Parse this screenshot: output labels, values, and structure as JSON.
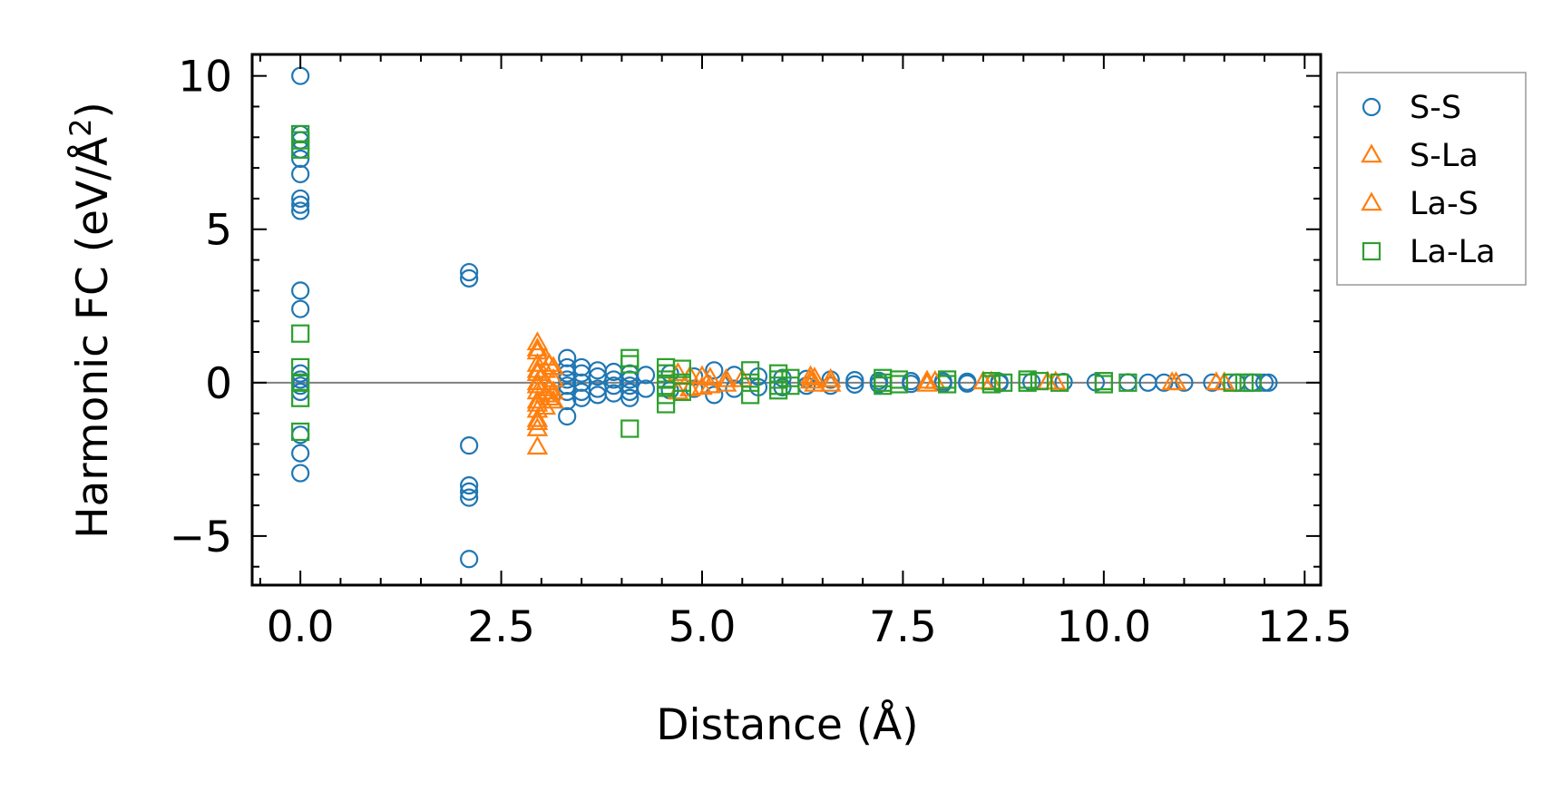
{
  "chart_data": {
    "type": "scatter",
    "title": "",
    "xlabel": "Distance (Å)",
    "ylabel_main": "Harmonic FC (eV/Å",
    "ylabel_sup": "2",
    "ylabel_close": ")",
    "xlim": [
      -0.6,
      12.7
    ],
    "ylim": [
      -6.6,
      10.7
    ],
    "xticks": [
      0.0,
      2.5,
      5.0,
      7.5,
      10.0,
      12.5
    ],
    "xtick_labels": [
      "0.0",
      "2.5",
      "5.0",
      "7.5",
      "10.0",
      "12.5"
    ],
    "yticks": [
      -5,
      0,
      5,
      10
    ],
    "ytick_labels": [
      "−5",
      "0",
      "5",
      "10"
    ],
    "zero_line": true,
    "grid": false,
    "legend_position": "outside-right-top",
    "series": [
      {
        "name": "S-S",
        "marker": "circle",
        "color": "#1f77b4",
        "points": [
          [
            0.0,
            10.0
          ],
          [
            0.0,
            8.1
          ],
          [
            0.0,
            7.9
          ],
          [
            0.0,
            7.6
          ],
          [
            0.0,
            7.3
          ],
          [
            0.0,
            6.8
          ],
          [
            0.0,
            6.0
          ],
          [
            0.0,
            5.8
          ],
          [
            0.0,
            5.6
          ],
          [
            0.0,
            3.0
          ],
          [
            0.0,
            2.4
          ],
          [
            0.0,
            0.3
          ],
          [
            0.0,
            0.1
          ],
          [
            0.0,
            -0.1
          ],
          [
            0.0,
            -0.3
          ],
          [
            0.0,
            -1.7
          ],
          [
            0.0,
            -2.3
          ],
          [
            0.0,
            -2.95
          ],
          [
            2.1,
            3.6
          ],
          [
            2.1,
            3.4
          ],
          [
            2.1,
            -2.05
          ],
          [
            2.1,
            -3.35
          ],
          [
            2.1,
            -3.55
          ],
          [
            2.1,
            -3.75
          ],
          [
            2.1,
            -5.75
          ],
          [
            3.32,
            0.8
          ],
          [
            3.32,
            0.5
          ],
          [
            3.32,
            0.3
          ],
          [
            3.32,
            0.1
          ],
          [
            3.32,
            -0.1
          ],
          [
            3.32,
            -0.3
          ],
          [
            3.32,
            -0.6
          ],
          [
            3.32,
            -1.1
          ],
          [
            3.5,
            0.5
          ],
          [
            3.5,
            0.3
          ],
          [
            3.5,
            0.0
          ],
          [
            3.5,
            -0.3
          ],
          [
            3.5,
            -0.5
          ],
          [
            3.7,
            0.4
          ],
          [
            3.7,
            0.2
          ],
          [
            3.7,
            -0.2
          ],
          [
            3.7,
            -0.4
          ],
          [
            3.9,
            0.35
          ],
          [
            3.9,
            0.1
          ],
          [
            3.9,
            -0.1
          ],
          [
            3.9,
            -0.35
          ],
          [
            4.1,
            0.3
          ],
          [
            4.1,
            0.1
          ],
          [
            4.1,
            -0.1
          ],
          [
            4.1,
            -0.3
          ],
          [
            4.1,
            -0.5
          ],
          [
            4.3,
            0.25
          ],
          [
            4.3,
            -0.2
          ],
          [
            4.6,
            0.3
          ],
          [
            4.6,
            -0.25
          ],
          [
            4.9,
            0.2
          ],
          [
            4.9,
            -0.2
          ],
          [
            5.15,
            0.4
          ],
          [
            5.15,
            -0.4
          ],
          [
            5.4,
            0.25
          ],
          [
            5.4,
            -0.2
          ],
          [
            5.7,
            0.2
          ],
          [
            5.7,
            -0.15
          ],
          [
            6.0,
            0.15
          ],
          [
            6.0,
            -0.15
          ],
          [
            6.3,
            0.12
          ],
          [
            6.3,
            -0.1
          ],
          [
            6.6,
            0.1
          ],
          [
            6.6,
            -0.1
          ],
          [
            6.9,
            0.08
          ],
          [
            6.9,
            -0.06
          ],
          [
            7.2,
            0.06
          ],
          [
            7.2,
            -0.05
          ],
          [
            7.6,
            0.05
          ],
          [
            7.6,
            -0.04
          ],
          [
            8.0,
            0.04
          ],
          [
            8.0,
            -0.03
          ],
          [
            8.3,
            0.03
          ],
          [
            8.3,
            -0.03
          ],
          [
            8.7,
            0.03
          ],
          [
            8.7,
            -0.02
          ],
          [
            9.1,
            0.02
          ],
          [
            9.5,
            0.02
          ],
          [
            9.9,
            0.01
          ],
          [
            10.3,
            0.01
          ],
          [
            10.55,
            0.0
          ],
          [
            10.75,
            0.0
          ],
          [
            11.0,
            0.0
          ],
          [
            11.35,
            0.0
          ],
          [
            11.65,
            0.0
          ],
          [
            11.85,
            0.0
          ],
          [
            12.0,
            0.0
          ],
          [
            12.05,
            0.0
          ]
        ]
      },
      {
        "name": "S-La",
        "marker": "triangle",
        "color": "#ff7f0e",
        "points": [
          [
            2.95,
            1.3
          ],
          [
            2.95,
            1.0
          ],
          [
            2.95,
            0.6
          ],
          [
            2.95,
            0.3
          ],
          [
            2.95,
            0.0
          ],
          [
            2.95,
            -0.3
          ],
          [
            2.95,
            -0.6
          ],
          [
            2.95,
            -0.9
          ],
          [
            2.95,
            -1.2
          ],
          [
            2.95,
            -1.5
          ],
          [
            2.95,
            -2.1
          ],
          [
            3.05,
            0.8
          ],
          [
            3.05,
            0.4
          ],
          [
            3.05,
            0.0
          ],
          [
            3.05,
            -0.4
          ],
          [
            3.05,
            -0.8
          ],
          [
            3.15,
            0.5
          ],
          [
            3.15,
            0.1
          ],
          [
            3.15,
            -0.3
          ],
          [
            3.15,
            -0.6
          ],
          [
            4.85,
            0.2
          ],
          [
            4.85,
            -0.2
          ],
          [
            5.1,
            0.15
          ],
          [
            5.1,
            -0.1
          ],
          [
            5.3,
            0.1
          ],
          [
            5.3,
            -0.05
          ],
          [
            6.35,
            0.2
          ],
          [
            6.35,
            0.05
          ],
          [
            6.6,
            0.1
          ],
          [
            6.6,
            -0.05
          ],
          [
            7.8,
            0.05
          ],
          [
            7.8,
            -0.05
          ],
          [
            8.5,
            0.03
          ],
          [
            9.3,
            0.02
          ],
          [
            10.85,
            0.0
          ],
          [
            11.4,
            0.0
          ]
        ]
      },
      {
        "name": "La-S",
        "marker": "triangle",
        "color": "#ff7f0e",
        "points": [
          [
            2.95,
            1.1
          ],
          [
            2.95,
            0.4
          ],
          [
            2.95,
            -0.1
          ],
          [
            2.95,
            -0.7
          ],
          [
            2.95,
            -1.3
          ],
          [
            3.1,
            0.6
          ],
          [
            3.1,
            -0.2
          ],
          [
            3.1,
            -0.5
          ],
          [
            4.7,
            0.3
          ],
          [
            4.7,
            -0.3
          ],
          [
            5.0,
            0.2
          ],
          [
            5.0,
            -0.15
          ],
          [
            5.5,
            0.1
          ],
          [
            6.4,
            0.15
          ],
          [
            6.4,
            -0.05
          ],
          [
            7.9,
            0.04
          ],
          [
            8.6,
            0.02
          ],
          [
            9.4,
            0.02
          ],
          [
            10.9,
            0.0
          ],
          [
            11.5,
            0.0
          ]
        ]
      },
      {
        "name": "La-La",
        "marker": "square",
        "color": "#2ca02c",
        "points": [
          [
            0.0,
            8.1
          ],
          [
            0.0,
            7.9
          ],
          [
            0.0,
            7.6
          ],
          [
            0.0,
            1.6
          ],
          [
            0.0,
            0.5
          ],
          [
            0.0,
            0.0
          ],
          [
            0.0,
            -0.5
          ],
          [
            0.0,
            -1.6
          ],
          [
            4.1,
            0.8
          ],
          [
            4.1,
            0.6
          ],
          [
            4.1,
            -1.5
          ],
          [
            4.55,
            0.5
          ],
          [
            4.55,
            0.3
          ],
          [
            4.55,
            0.1
          ],
          [
            4.55,
            -0.1
          ],
          [
            4.55,
            -0.4
          ],
          [
            4.55,
            -0.7
          ],
          [
            4.75,
            0.45
          ],
          [
            4.75,
            0.0
          ],
          [
            4.75,
            -0.3
          ],
          [
            5.6,
            0.4
          ],
          [
            5.6,
            0.0
          ],
          [
            5.6,
            -0.4
          ],
          [
            5.95,
            0.3
          ],
          [
            5.95,
            0.1
          ],
          [
            5.95,
            -0.1
          ],
          [
            5.95,
            -0.25
          ],
          [
            6.1,
            0.15
          ],
          [
            6.1,
            -0.1
          ],
          [
            7.25,
            0.15
          ],
          [
            7.25,
            0.0
          ],
          [
            7.25,
            -0.1
          ],
          [
            7.45,
            0.1
          ],
          [
            7.45,
            -0.05
          ],
          [
            8.05,
            0.1
          ],
          [
            8.05,
            -0.05
          ],
          [
            8.6,
            0.05
          ],
          [
            8.6,
            -0.05
          ],
          [
            8.75,
            0.0
          ],
          [
            9.05,
            0.1
          ],
          [
            9.05,
            0.0
          ],
          [
            9.2,
            0.05
          ],
          [
            9.45,
            0.0
          ],
          [
            10.0,
            0.05
          ],
          [
            10.0,
            -0.05
          ],
          [
            10.3,
            0.0
          ],
          [
            11.6,
            0.0
          ],
          [
            11.75,
            0.0
          ],
          [
            11.85,
            0.0
          ]
        ]
      }
    ]
  }
}
